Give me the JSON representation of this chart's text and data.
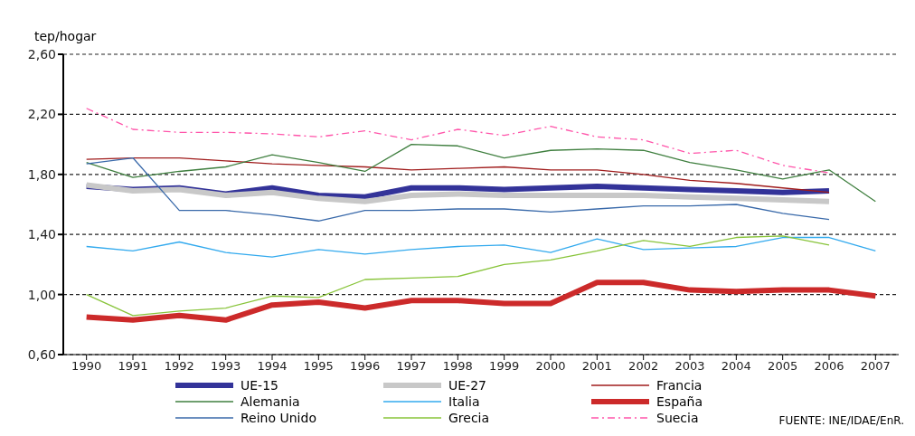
{
  "chart_data": {
    "type": "line",
    "ylabel": "tep/hogar",
    "categories": [
      "1990",
      "1991",
      "1992",
      "1993",
      "1994",
      "1995",
      "1996",
      "1997",
      "1998",
      "1999",
      "2000",
      "2001",
      "2002",
      "2003",
      "2004",
      "2005",
      "2006",
      "2007"
    ],
    "ylim": [
      0.6,
      2.6
    ],
    "yticks": [
      {
        "value": 0.6,
        "label": "0,60"
      },
      {
        "value": 1.0,
        "label": "1,00"
      },
      {
        "value": 1.4,
        "label": "1,40"
      },
      {
        "value": 1.8,
        "label": "1,80"
      },
      {
        "value": 2.2,
        "label": "2,20"
      },
      {
        "value": 2.6,
        "label": "2,60"
      }
    ],
    "grid": "y",
    "legend": "bottom",
    "marker": "none",
    "series": [
      {
        "name": "UE-15",
        "color": "#333399",
        "values": [
          1.72,
          1.7,
          1.71,
          1.67,
          1.71,
          1.66,
          1.65,
          1.71,
          1.71,
          1.7,
          1.71,
          1.72,
          1.71,
          1.7,
          1.69,
          1.68,
          1.69,
          null
        ]
      },
      {
        "name": "UE-27",
        "color": "#c8c8c8",
        "values": [
          1.73,
          1.69,
          1.7,
          1.66,
          1.68,
          1.64,
          1.62,
          1.66,
          1.67,
          1.66,
          1.66,
          1.66,
          1.66,
          1.65,
          1.64,
          1.63,
          1.62,
          null
        ]
      },
      {
        "name": "Francia",
        "color": "#a01c1c",
        "values": [
          1.9,
          1.91,
          1.91,
          1.89,
          1.87,
          1.86,
          1.85,
          1.83,
          1.84,
          1.85,
          1.83,
          1.83,
          1.8,
          1.76,
          1.74,
          1.71,
          1.68,
          null
        ]
      },
      {
        "name": "Alemania",
        "color": "#3f7f3f",
        "values": [
          1.88,
          1.78,
          1.82,
          1.85,
          1.93,
          1.88,
          1.82,
          2.0,
          1.99,
          1.91,
          1.96,
          1.97,
          1.96,
          1.88,
          1.83,
          1.77,
          1.83,
          1.62
        ]
      },
      {
        "name": "Italia",
        "color": "#33aaee",
        "values": [
          1.32,
          1.29,
          1.35,
          1.28,
          1.25,
          1.3,
          1.27,
          1.3,
          1.32,
          1.33,
          1.28,
          1.37,
          1.3,
          1.31,
          1.32,
          1.38,
          1.38,
          1.29
        ]
      },
      {
        "name": "España",
        "color": "#cc2a2a",
        "values": [
          0.85,
          0.83,
          0.86,
          0.83,
          0.93,
          0.95,
          0.91,
          0.96,
          0.96,
          0.94,
          0.94,
          1.08,
          1.08,
          1.03,
          1.02,
          1.03,
          1.03,
          0.99
        ]
      },
      {
        "name": "Reino Unido",
        "color": "#3a6aaa",
        "values": [
          1.87,
          1.91,
          1.56,
          1.56,
          1.53,
          1.49,
          1.56,
          1.56,
          1.57,
          1.57,
          1.55,
          1.57,
          1.59,
          1.59,
          1.6,
          1.54,
          1.5,
          null
        ]
      },
      {
        "name": "Grecia",
        "color": "#88c43a",
        "values": [
          1.0,
          0.86,
          0.89,
          0.91,
          0.99,
          0.98,
          1.1,
          1.11,
          1.12,
          1.2,
          1.23,
          1.29,
          1.36,
          1.32,
          1.38,
          1.39,
          1.33,
          null
        ]
      },
      {
        "name": "Suecia",
        "color": "#ff55aa",
        "line_style": "dashed",
        "values": [
          2.24,
          2.1,
          2.08,
          2.08,
          2.07,
          2.05,
          2.09,
          2.03,
          2.1,
          2.06,
          2.12,
          2.05,
          2.03,
          1.94,
          1.96,
          1.86,
          1.81,
          null
        ]
      }
    ],
    "annotations": [
      "FUENTE: INE/IDAE/EnR."
    ]
  }
}
